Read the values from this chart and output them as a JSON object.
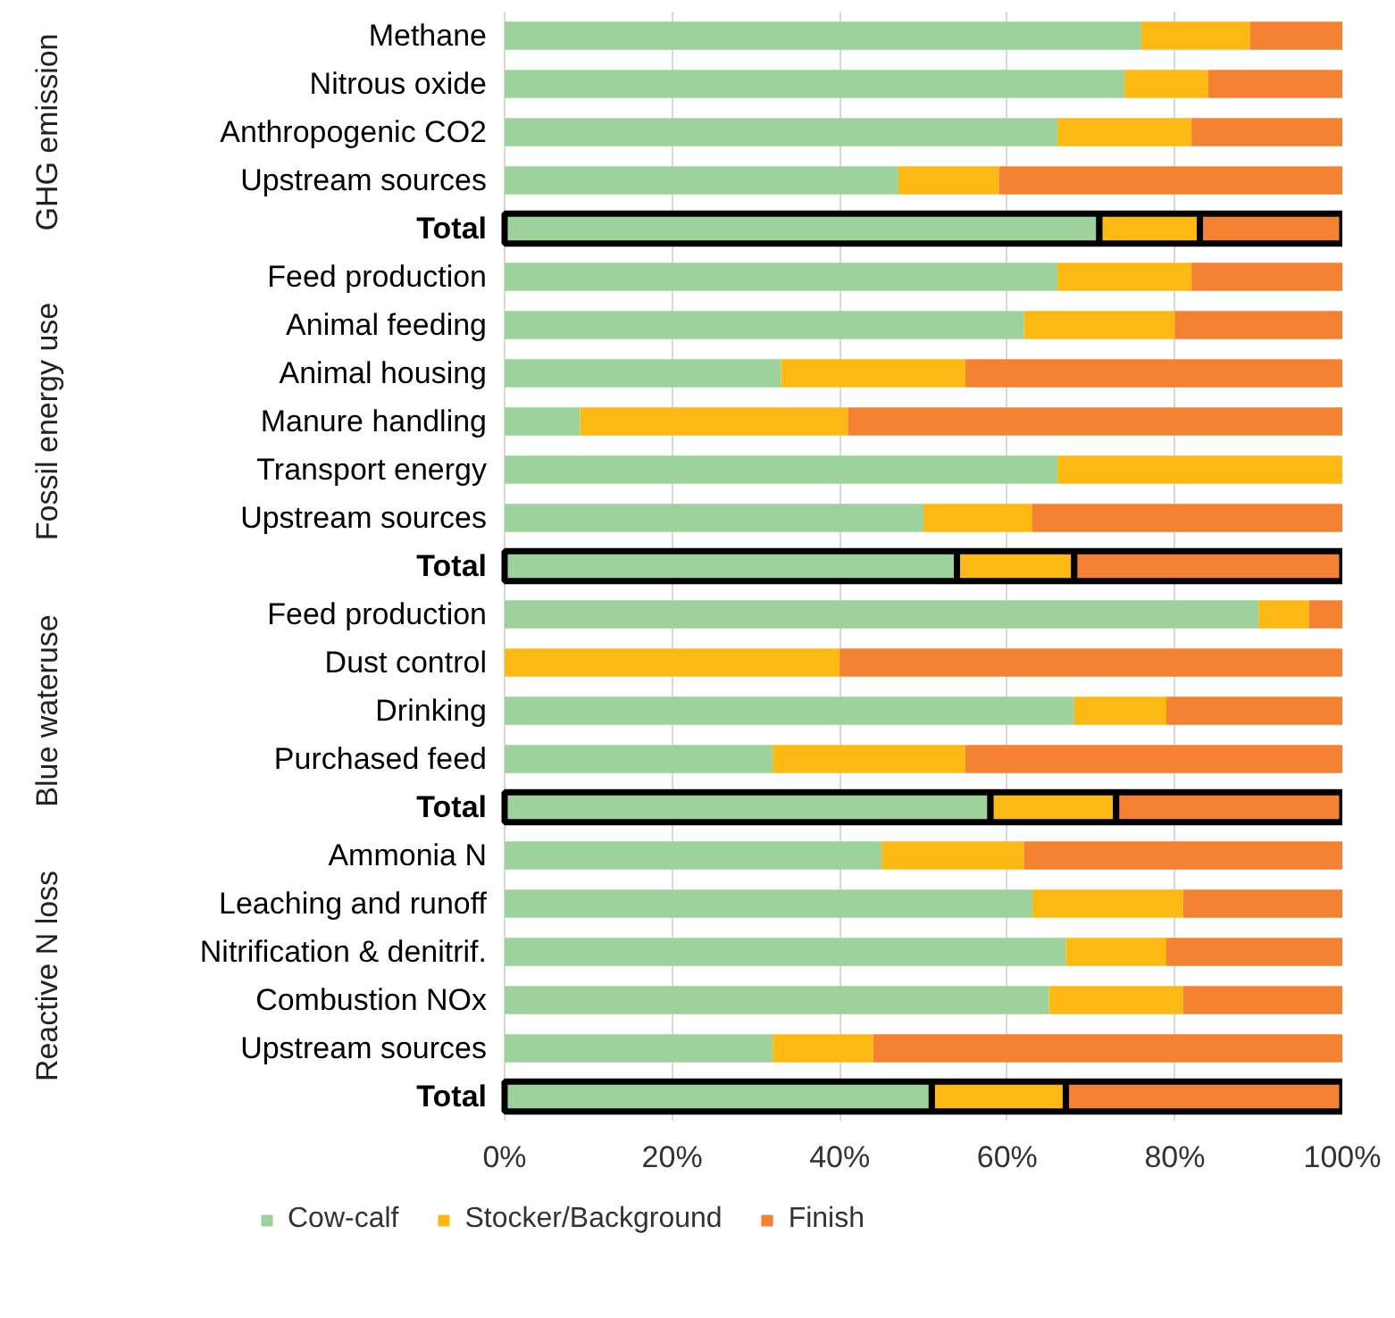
{
  "chart_data": {
    "type": "bar",
    "orientation": "horizontal",
    "stacked": true,
    "categories": [
      "Methane",
      "Nitrous oxide",
      "Anthropogenic CO2",
      "Upstream sources",
      "Total",
      "Feed production",
      "Animal feeding",
      "Animal housing",
      "Manure handling",
      "Transport energy",
      "Upstream sources",
      "Total",
      "Feed production",
      "Dust control",
      "Drinking",
      "Purchased feed",
      "Total",
      "Ammonia N",
      "Leaching and runoff",
      "Nitrification & denitrif.",
      "Combustion NOx",
      "Upstream sources",
      "Total"
    ],
    "series": [
      {
        "name": "Cow-calf",
        "color": "#9dd29c",
        "values": [
          76,
          74,
          66,
          47,
          71,
          66,
          62,
          33,
          9,
          66,
          50,
          54,
          90,
          0,
          68,
          32,
          58,
          45,
          63,
          67,
          65,
          32,
          51
        ]
      },
      {
        "name": "Stocker/Background",
        "color": "#fdb913",
        "values": [
          13,
          10,
          16,
          12,
          12,
          16,
          18,
          22,
          32,
          34,
          13,
          14,
          6,
          40,
          11,
          23,
          15,
          17,
          18,
          12,
          16,
          12,
          16
        ]
      },
      {
        "name": "Finish",
        "color": "#f58232",
        "values": [
          11,
          16,
          18,
          41,
          17,
          18,
          20,
          45,
          59,
          0,
          37,
          32,
          4,
          60,
          21,
          45,
          27,
          38,
          19,
          21,
          19,
          56,
          33
        ]
      }
    ],
    "annotations": [
      "GHG emission",
      "Fossil energy use",
      "Blue wateruse",
      "Reactive N loss"
    ],
    "xlim": [
      0,
      100
    ],
    "xticks": [
      {
        "value": 0,
        "label": "0%"
      },
      {
        "value": 20,
        "label": "20%"
      },
      {
        "value": 40,
        "label": "40%"
      },
      {
        "value": 60,
        "label": "60%"
      },
      {
        "value": 80,
        "label": "80%"
      },
      {
        "value": 100,
        "label": "100%"
      }
    ],
    "grid": "x",
    "legend": "bottom"
  }
}
